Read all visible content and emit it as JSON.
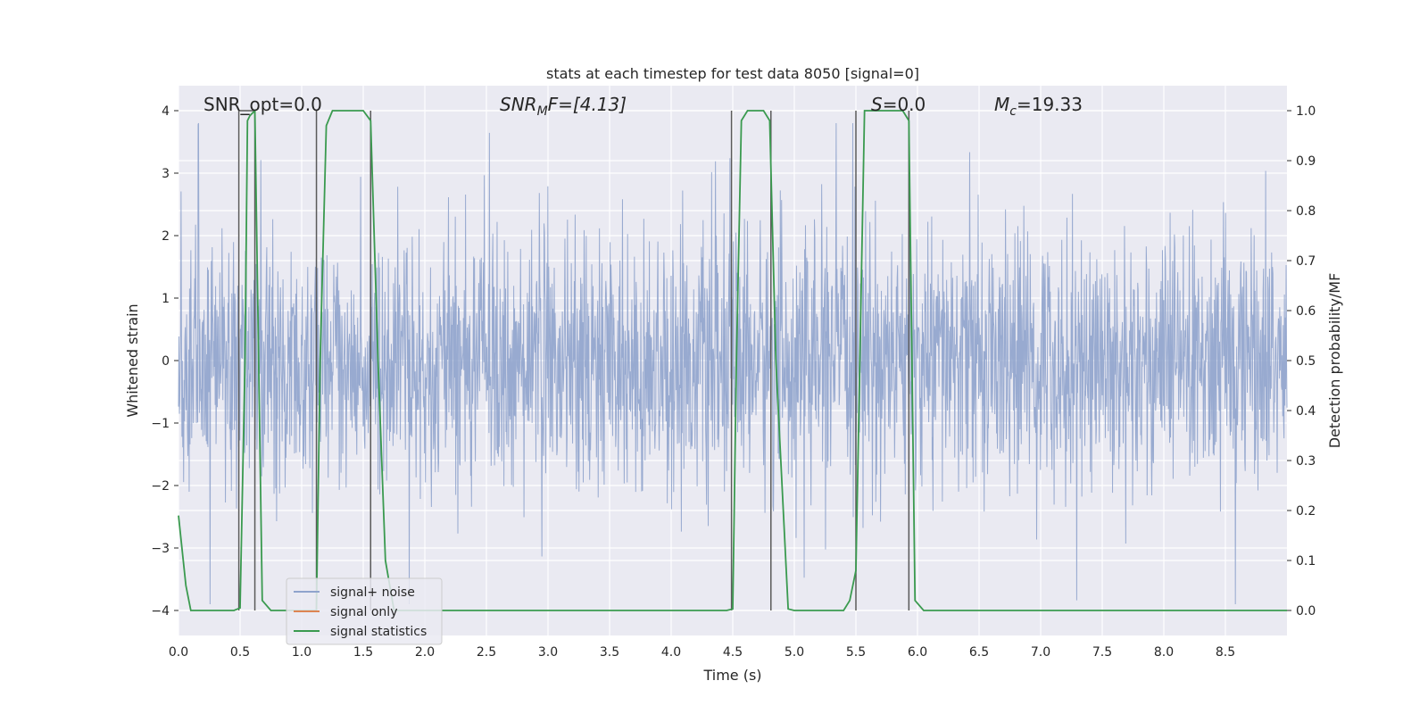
{
  "chart_data": {
    "type": "line",
    "title": "stats at each timestep for test data 8050 [signal=0]",
    "xlabel": "Time (s)",
    "ylabel": "Whitened strain",
    "ylabel_right": "Detection probability/MF",
    "xlim": [
      0,
      9
    ],
    "ylim": [
      -4.4,
      4.4
    ],
    "ylim_right": [
      -0.05,
      1.05
    ],
    "x_ticks": [
      0.0,
      0.5,
      1.0,
      1.5,
      2.0,
      2.5,
      3.0,
      3.5,
      4.0,
      4.5,
      5.0,
      5.5,
      6.0,
      6.5,
      7.0,
      7.5,
      8.0,
      8.5
    ],
    "x_tick_labels": [
      "0.0",
      "0.5",
      "1.0",
      "1.5",
      "2.0",
      "2.5",
      "3.0",
      "3.5",
      "4.0",
      "4.5",
      "5.0",
      "5.5",
      "6.0",
      "6.5",
      "7.0",
      "7.5",
      "8.0",
      "8.5"
    ],
    "y_ticks": [
      4,
      3,
      2,
      1,
      0,
      -1,
      -2,
      -3,
      -4
    ],
    "y_tick_labels": [
      "4",
      "3",
      "2",
      "1",
      "0",
      "−1",
      "−2",
      "−3",
      "−4"
    ],
    "y_ticks_right": [
      1.0,
      0.9,
      0.8,
      0.7,
      0.6,
      0.5,
      0.4,
      0.3,
      0.2,
      0.1,
      0.0
    ],
    "y_tick_labels_right": [
      "1.0",
      "0.9",
      "0.8",
      "0.7",
      "0.6",
      "0.5",
      "0.4",
      "0.3",
      "0.2",
      "0.1",
      "0.0"
    ],
    "grid": true,
    "legend_position": "lower-left",
    "annotations": {
      "snr_opt": "SNR_opt=0.0",
      "snr_mf_base": "SNR",
      "snr_mf_sub": "M",
      "snr_mf_rest": "F=[4.13]",
      "s_var": "S",
      "s_rest": "=0.0",
      "mc_base": "M",
      "mc_sub": "c",
      "mc_rest": "=19.33"
    },
    "series": [
      {
        "name": "signal+ noise",
        "color": "#8fa3cc",
        "axis": "left",
        "description_range": [
          -3.9,
          3.8
        ]
      },
      {
        "name": "signal only",
        "color": "#dd8452",
        "axis": "left",
        "x": [],
        "y": []
      },
      {
        "name": "signal statistics",
        "color": "#3a9a4f",
        "axis": "right",
        "x": [
          0.0,
          0.06,
          0.1,
          0.45,
          0.48,
          0.5,
          0.54,
          0.56,
          0.58,
          0.62,
          0.68,
          0.75,
          1.12,
          1.15,
          1.2,
          1.25,
          1.5,
          1.56,
          1.62,
          1.68,
          1.75,
          4.45,
          4.5,
          4.53,
          4.57,
          4.62,
          4.75,
          4.8,
          4.85,
          4.95,
          5.0,
          5.4,
          5.45,
          5.5,
          5.57,
          5.63,
          5.88,
          5.93,
          5.98,
          6.05,
          9.0
        ],
        "y": [
          0.19,
          0.05,
          0.0,
          0.0,
          0.003,
          0.005,
          0.5,
          0.98,
          0.99,
          1.0,
          0.02,
          0.0,
          0.0,
          0.5,
          0.97,
          1.0,
          1.0,
          0.98,
          0.5,
          0.1,
          0.0,
          0.0,
          0.003,
          0.5,
          0.98,
          1.0,
          1.0,
          0.98,
          0.5,
          0.003,
          0.0,
          0.0,
          0.02,
          0.08,
          1.0,
          1.0,
          1.0,
          0.98,
          0.02,
          0.0,
          0.0
        ]
      }
    ],
    "event_lines_x": [
      0.49,
      0.62,
      1.12,
      1.56,
      4.49,
      4.81,
      5.5,
      5.93
    ],
    "event_line_color": "#5a5a5a",
    "colors": {
      "axes_bg": "#eaeaf2",
      "grid": "#ffffff",
      "text": "#262626"
    }
  }
}
